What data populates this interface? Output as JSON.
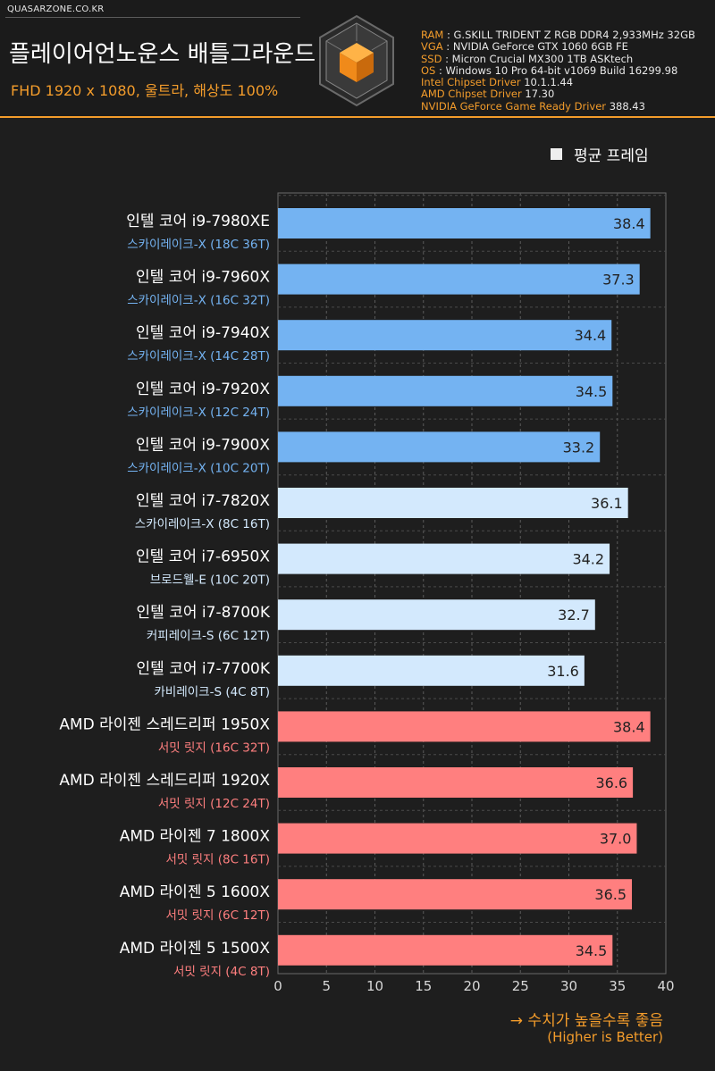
{
  "header": {
    "site": "QUASARZONE.CO.KR",
    "title": "플레이어언노운스 배틀그라운드",
    "subtitle": "FHD 1920 x 1080, 울트라, 해상도 100%",
    "specs": [
      {
        "key": "RAM",
        "value": "G.SKILL TRIDENT Z RGB DDR4 2,933MHz 32GB"
      },
      {
        "key": "VGA",
        "value": "NVIDIA GeForce GTX 1060 6GB FE"
      },
      {
        "key": "SSD",
        "value": "Micron Crucial MX300 1TB ASKtech"
      },
      {
        "key": "OS",
        "value": "Windows 10 Pro 64-bit v1069 Build 16299.98"
      }
    ],
    "drivers": [
      {
        "name": "Intel Chipset Driver",
        "version": "10.1.1.44"
      },
      {
        "name": "AMD Chipset Driver",
        "version": "17.30"
      },
      {
        "name": "NVIDIA GeForce Game Ready Driver",
        "version": "388.43"
      }
    ]
  },
  "colors": {
    "accent": "#f39c2b",
    "skylake_x_bar": "#74b3f2",
    "intel_bar": "#d3e9fd",
    "amd_bar": "#ff7f7f",
    "skylake_x_sub": "#74b3f2",
    "intel_sub": "#d3e9fd",
    "amd_sub": "#ff7f7f"
  },
  "footer": {
    "note": "→ 수치가 높을수록 좋음",
    "note_en": "(Higher is Better)"
  },
  "chart_data": {
    "type": "bar",
    "orientation": "horizontal",
    "title": "플레이어언노운스 배틀그라운드",
    "subtitle": "FHD 1920 x 1080, 울트라, 해상도 100%",
    "legend": {
      "label": "평균 프레임",
      "position": "top-right"
    },
    "xlim": [
      0,
      40
    ],
    "xticks": [
      0,
      5,
      10,
      15,
      20,
      25,
      30,
      35,
      40
    ],
    "grid": true,
    "categories": [
      {
        "name": "인텔 코어 i9-7980XE",
        "sub": "스카이레이크-X (18C 36T)",
        "group": "skylake_x",
        "value": 38.4,
        "label": "38.4"
      },
      {
        "name": "인텔 코어 i9-7960X",
        "sub": "스카이레이크-X (16C 32T)",
        "group": "skylake_x",
        "value": 37.3,
        "label": "37.3"
      },
      {
        "name": "인텔 코어 i9-7940X",
        "sub": "스카이레이크-X (14C 28T)",
        "group": "skylake_x",
        "value": 34.4,
        "label": "34.4"
      },
      {
        "name": "인텔 코어 i9-7920X",
        "sub": "스카이레이크-X (12C 24T)",
        "group": "skylake_x",
        "value": 34.5,
        "label": "34.5"
      },
      {
        "name": "인텔 코어 i9-7900X",
        "sub": "스카이레이크-X (10C 20T)",
        "group": "skylake_x",
        "value": 33.2,
        "label": "33.2"
      },
      {
        "name": "인텔 코어 i7-7820X",
        "sub": "스카이레이크-X (8C 16T)",
        "group": "intel",
        "value": 36.1,
        "label": "36.1"
      },
      {
        "name": "인텔 코어 i7-6950X",
        "sub": "브로드웰-E (10C 20T)",
        "group": "intel",
        "value": 34.2,
        "label": "34.2"
      },
      {
        "name": "인텔 코어 i7-8700K",
        "sub": "커피레이크-S (6C 12T)",
        "group": "intel",
        "value": 32.7,
        "label": "32.7"
      },
      {
        "name": "인텔 코어 i7-7700K",
        "sub": "카비레이크-S (4C 8T)",
        "group": "intel",
        "value": 31.6,
        "label": "31.6"
      },
      {
        "name": "AMD 라이젠 스레드리퍼 1950X",
        "sub": "서밋 릿지 (16C 32T)",
        "group": "amd",
        "value": 38.4,
        "label": "38.4"
      },
      {
        "name": "AMD 라이젠 스레드리퍼 1920X",
        "sub": "서밋 릿지 (12C 24T)",
        "group": "amd",
        "value": 36.6,
        "label": "36.6"
      },
      {
        "name": "AMD 라이젠 7 1800X",
        "sub": "서밋 릿지 (8C 16T)",
        "group": "amd",
        "value": 37.0,
        "label": "37.0"
      },
      {
        "name": "AMD 라이젠 5 1600X",
        "sub": "서밋 릿지 (6C 12T)",
        "group": "amd",
        "value": 36.5,
        "label": "36.5"
      },
      {
        "name": "AMD 라이젠 5 1500X",
        "sub": "서밋 릿지 (4C 8T)",
        "group": "amd",
        "value": 34.5,
        "label": "34.5"
      }
    ]
  }
}
